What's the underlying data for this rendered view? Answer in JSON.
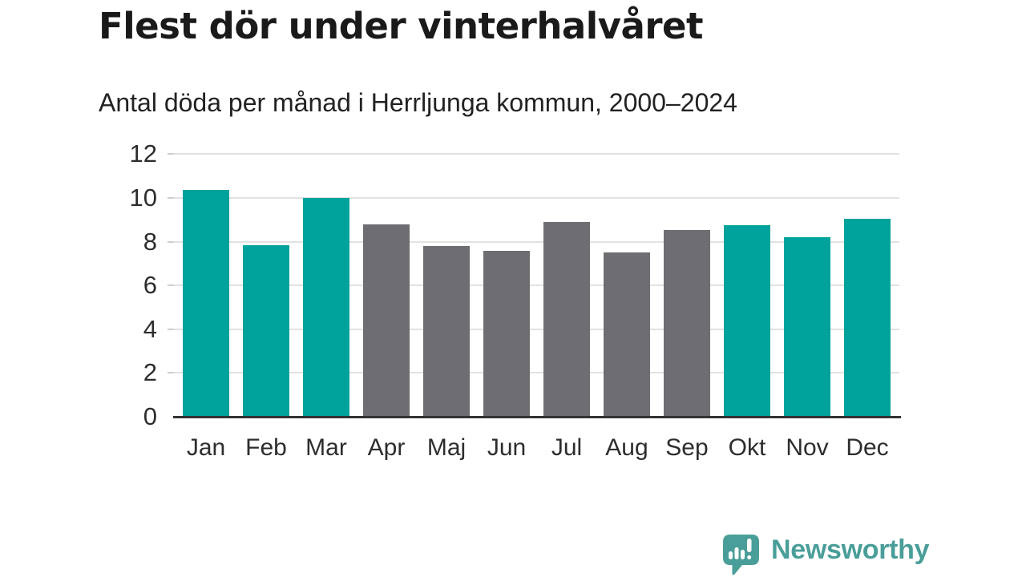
{
  "header": {
    "title": "Flest dör under vinterhalvåret",
    "subtitle": "Antal döda per månad i Herrljunga kommun, 2000–2024"
  },
  "chart_data": {
    "type": "bar",
    "title": "Flest dör under vinterhalvåret",
    "subtitle": "Antal döda per månad i Herrljunga kommun, 2000–2024",
    "categories": [
      "Jan",
      "Feb",
      "Mar",
      "Apr",
      "Maj",
      "Jun",
      "Jul",
      "Aug",
      "Sep",
      "Okt",
      "Nov",
      "Dec"
    ],
    "values": [
      10.35,
      7.85,
      10.0,
      8.8,
      7.8,
      7.6,
      8.9,
      7.5,
      8.55,
      8.75,
      8.2,
      9.05
    ],
    "highlighted": [
      true,
      true,
      true,
      false,
      false,
      false,
      false,
      false,
      false,
      true,
      true,
      true
    ],
    "highlight_meaning": "winter-half-year months in teal",
    "xlabel": "",
    "ylabel": "",
    "ylim": [
      0,
      12
    ],
    "yticks": [
      0,
      2,
      4,
      6,
      8,
      10,
      12
    ],
    "grid": true,
    "legend": "none",
    "colors": {
      "highlight": "#00a39b",
      "base": "#6e6e72",
      "gridline": "#e2e2e2",
      "tick": "#cfcfcf",
      "axis": "#333333",
      "text": "#2d2d2d"
    }
  },
  "footer": {
    "brand": "Newsworthy",
    "brand_color": "#4a9e99",
    "logo_icon": "speech-bubble-with-bar-chart-and-exclamation"
  }
}
